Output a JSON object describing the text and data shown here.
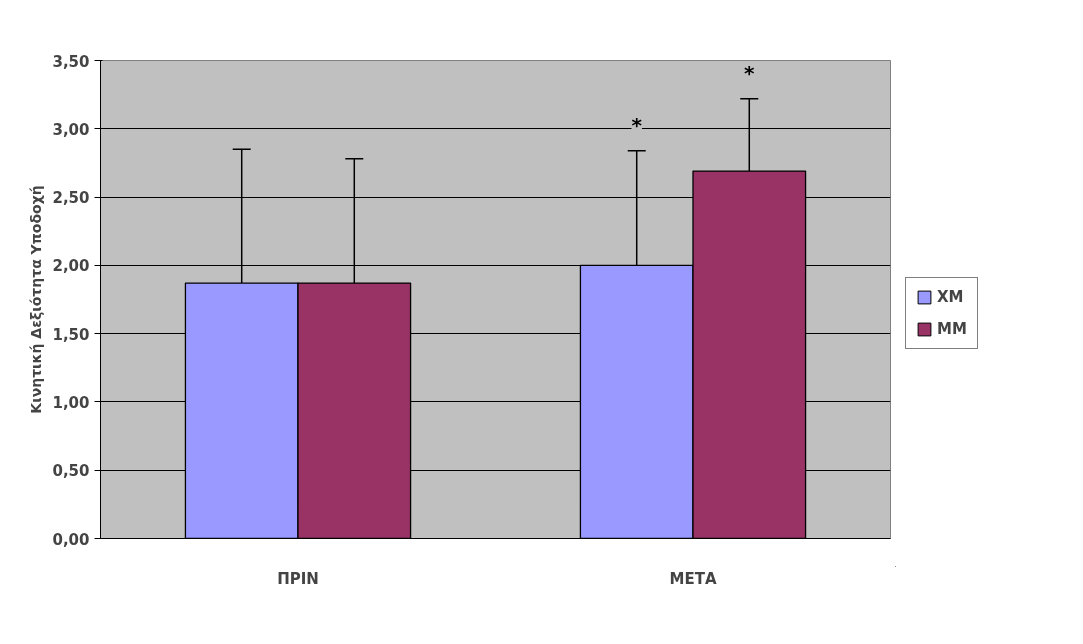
{
  "chart_data": {
    "type": "bar",
    "ylabel": "Κινητική Δεξιότητα Υποδοχή",
    "categories": [
      "ΠΡΙΝ",
      "ΜΕΤΑ"
    ],
    "series": [
      {
        "name": "ΧΜ",
        "color": "#9999ff",
        "values": [
          1.87,
          2.0
        ],
        "errors": [
          [
            1.87,
            2.85
          ],
          [
            2.0,
            2.84
          ]
        ]
      },
      {
        "name": "ΜΜ",
        "color": "#993366",
        "values": [
          1.87,
          2.69
        ],
        "errors": [
          [
            1.87,
            2.78
          ],
          [
            2.69,
            3.22
          ]
        ]
      }
    ],
    "ylim": [
      0,
      3.5
    ],
    "yticks": [
      {
        "value": 0,
        "label": "0,00"
      },
      {
        "value": 0.5,
        "label": "0,50"
      },
      {
        "value": 1,
        "label": "1,00"
      },
      {
        "value": 1.5,
        "label": "1,50"
      },
      {
        "value": 2,
        "label": "2,00"
      },
      {
        "value": 2.5,
        "label": "2,50"
      },
      {
        "value": 3,
        "label": "3,00"
      },
      {
        "value": 3.5,
        "label": "3,50"
      }
    ],
    "grid": "y",
    "legend": "right",
    "annotations": [
      "*",
      "*"
    ]
  }
}
